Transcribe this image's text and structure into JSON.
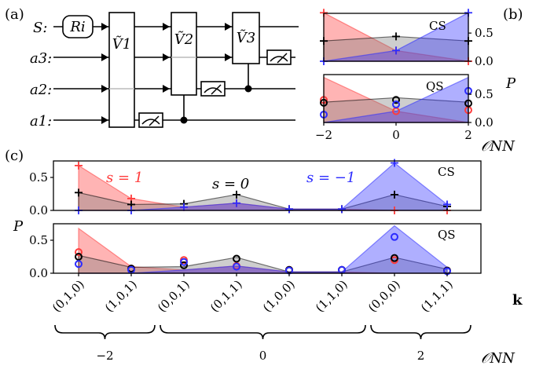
{
  "panel_labels": {
    "a": "(a)",
    "b": "(b)",
    "c": "(c)"
  },
  "circuit": {
    "wires": [
      "S:",
      "a3:",
      "a2:",
      "a1:"
    ],
    "gates": {
      "ri": "Ri",
      "v1": "Ṽ1",
      "v2": "Ṽ2",
      "v3": "Ṽ3"
    }
  },
  "colors": {
    "red": "#ff3b3b",
    "black": "#000000",
    "blue": "#2c2cff",
    "grey": "#7f7f7f"
  },
  "chart_data": [
    {
      "id": "b",
      "type": "area",
      "rows": [
        "CS",
        "QS"
      ],
      "x": [
        -2,
        0,
        2
      ],
      "xlabel": "𝒪NN",
      "ylabel": "P",
      "ylim": [
        0,
        0.85
      ],
      "yticks": [
        "0.0",
        "0.5"
      ],
      "xticks": [
        "−2",
        "0",
        "2"
      ],
      "series": [
        {
          "name": "s = 1",
          "color": "red",
          "cs": [
            0.86,
            0.19,
            0.0
          ],
          "qs_area": [
            0.8,
            0.2,
            0.0
          ],
          "qs": [
            0.4,
            0.2,
            0.22
          ]
        },
        {
          "name": "s = 0",
          "color": "black",
          "cs": [
            0.36,
            0.44,
            0.36
          ],
          "qs_area": [
            0.36,
            0.44,
            0.36
          ],
          "qs": [
            0.35,
            0.4,
            0.34
          ]
        },
        {
          "name": "s = −1",
          "color": "blue",
          "cs": [
            0.0,
            0.19,
            0.86
          ],
          "qs_area": [
            0.0,
            0.2,
            0.8
          ],
          "qs": [
            0.14,
            0.32,
            0.56
          ]
        }
      ]
    },
    {
      "id": "c",
      "type": "area",
      "rows": [
        "CS",
        "QS"
      ],
      "categories": [
        "(0,1,0)",
        "(1,0,1)",
        "(0,0,1)",
        "(0,1,1)",
        "(1,0,0)",
        "(1,1,0)",
        "(0,0,0)",
        "(1,1,1)"
      ],
      "xlabel": "k",
      "ylabel": "P",
      "ylim": [
        0,
        0.75
      ],
      "yticks": [
        "0.0",
        "0.5"
      ],
      "groups": [
        {
          "label": "−2",
          "from": 0,
          "to": 1
        },
        {
          "label": "0",
          "from": 2,
          "to": 5
        },
        {
          "label": "2",
          "from": 6,
          "to": 7
        }
      ],
      "group_axis_label": "𝒪NN",
      "legend": {
        "red": "s = 1",
        "black": "s = 0",
        "blue": "s = −1"
      },
      "series": [
        {
          "name": "s = 1",
          "color": "red",
          "cs": [
            0.68,
            0.18,
            0.05,
            0.11,
            0.02,
            0.02,
            0.0,
            0.0
          ],
          "qs_area": [
            0.68,
            0.1,
            0.05,
            0.11,
            0.02,
            0.02,
            0.0,
            0.0
          ],
          "qs": [
            0.32,
            0.07,
            0.2,
            0.11,
            0.05,
            0.05,
            0.2,
            0.04
          ]
        },
        {
          "name": "s = 0",
          "color": "black",
          "cs": [
            0.27,
            0.09,
            0.1,
            0.24,
            0.02,
            0.02,
            0.24,
            0.06
          ],
          "qs_area": [
            0.27,
            0.09,
            0.1,
            0.24,
            0.02,
            0.02,
            0.24,
            0.06
          ],
          "qs": [
            0.25,
            0.07,
            0.12,
            0.22,
            0.05,
            0.05,
            0.23,
            0.04
          ]
        },
        {
          "name": "s = −1",
          "color": "blue",
          "cs": [
            0.0,
            0.0,
            0.05,
            0.11,
            0.02,
            0.02,
            0.72,
            0.09
          ],
          "qs_area": [
            0.0,
            0.0,
            0.05,
            0.11,
            0.02,
            0.02,
            0.72,
            0.09
          ],
          "qs": [
            0.14,
            0.05,
            0.17,
            0.1,
            0.04,
            0.05,
            0.55,
            0.03
          ]
        }
      ]
    }
  ]
}
